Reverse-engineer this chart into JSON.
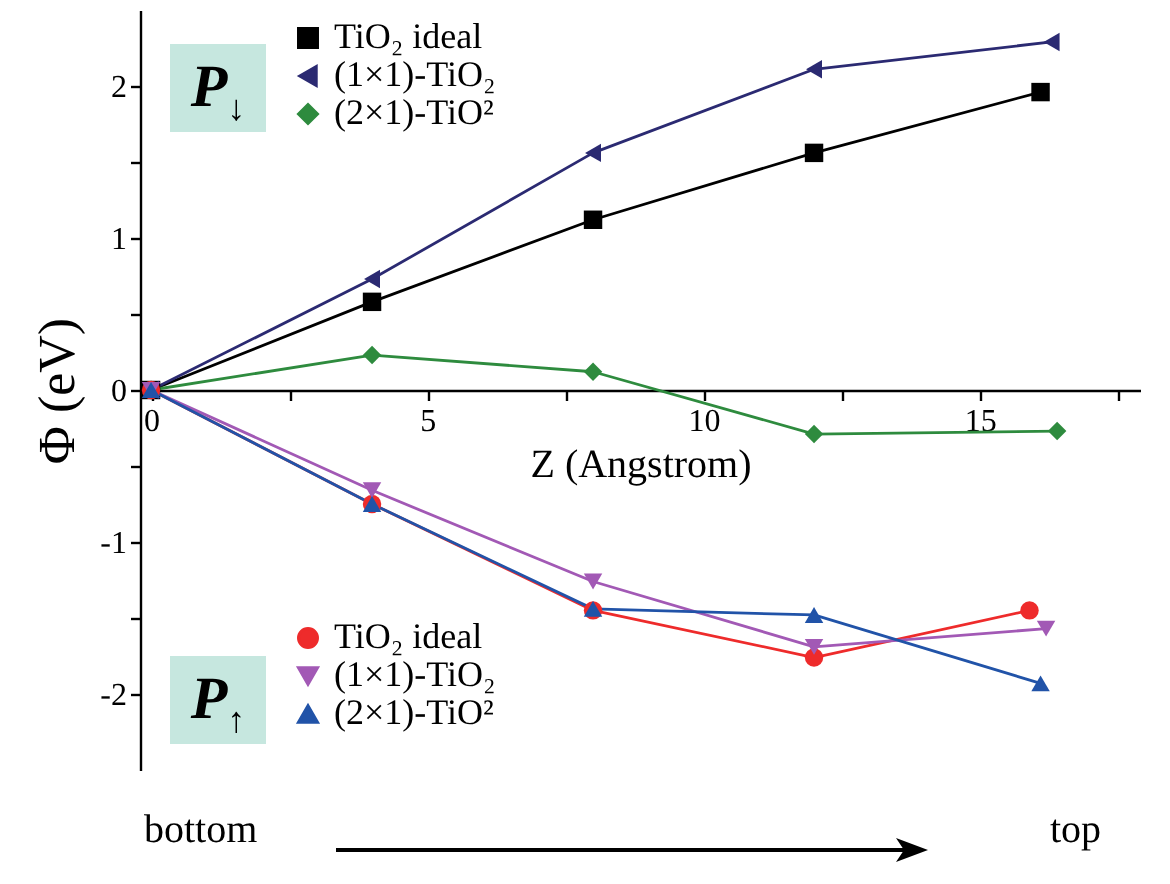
{
  "chart_data": {
    "type": "line",
    "xlabel": "Z (Angstrom)",
    "ylabel": "Φ (eV)",
    "xlim": [
      -0.2,
      17.9
    ],
    "xticks": [
      0,
      {
        "value": 2.5,
        "label": null
      },
      5,
      {
        "value": 7.5,
        "label": null
      },
      10,
      {
        "value": 12.5,
        "label": null
      },
      15,
      {
        "value": 17.5,
        "label": null
      }
    ],
    "ylim": [
      -2.5,
      2.5
    ],
    "yticks": [
      -2,
      {
        "value": -1.5,
        "label": null
      },
      -1,
      {
        "value": -0.5,
        "label": null
      },
      0,
      {
        "value": 0.5,
        "label": null
      },
      1,
      {
        "value": 1.5,
        "label": null
      },
      2
    ],
    "grid": false,
    "legend": "left",
    "annotations": [
      "P$_{↓}$",
      "P$_{↑}$",
      "bottom",
      "top"
    ],
    "series": [
      {
        "name": "TiO₂ ideal",
        "color": "#000000",
        "marker": "square",
        "x": [
          0,
          4,
          8,
          12,
          16.1
        ],
        "values": [
          0,
          0.58,
          1.12,
          1.56,
          1.96
        ]
      },
      {
        "name": "(1×1)-TiO₂",
        "color": "#2b2a72",
        "marker": "triangle-left",
        "x": [
          0,
          4,
          8,
          12,
          16.3
        ],
        "values": [
          0,
          0.73,
          1.56,
          2.11,
          2.29
        ]
      },
      {
        "name": "(2×1)-TiO²",
        "color": "#2e8b3e",
        "marker": "diamond",
        "x": [
          0,
          4,
          8,
          12,
          16.4
        ],
        "values": [
          0,
          0.23,
          0.12,
          -0.29,
          -0.27
        ]
      },
      {
        "name": "TiO₂ ideal",
        "color": "#ee2b2b",
        "marker": "circle",
        "x": [
          0,
          4,
          8,
          12,
          15.9
        ],
        "values": [
          0,
          -0.75,
          -1.45,
          -1.76,
          -1.45
        ]
      },
      {
        "name": "(1×1)-TiO₂",
        "color": "#a259b5",
        "marker": "triangle-down",
        "x": [
          0,
          4,
          8,
          12,
          16.2
        ],
        "values": [
          0,
          -0.66,
          -1.26,
          -1.69,
          -1.57
        ]
      },
      {
        "name": "(2×1)-TiO²",
        "color": "#2153a8",
        "marker": "triangle-up",
        "x": [
          0,
          4,
          8,
          12,
          16.1
        ],
        "values": [
          0,
          -0.75,
          -1.44,
          -1.48,
          -1.93
        ]
      }
    ]
  }
}
